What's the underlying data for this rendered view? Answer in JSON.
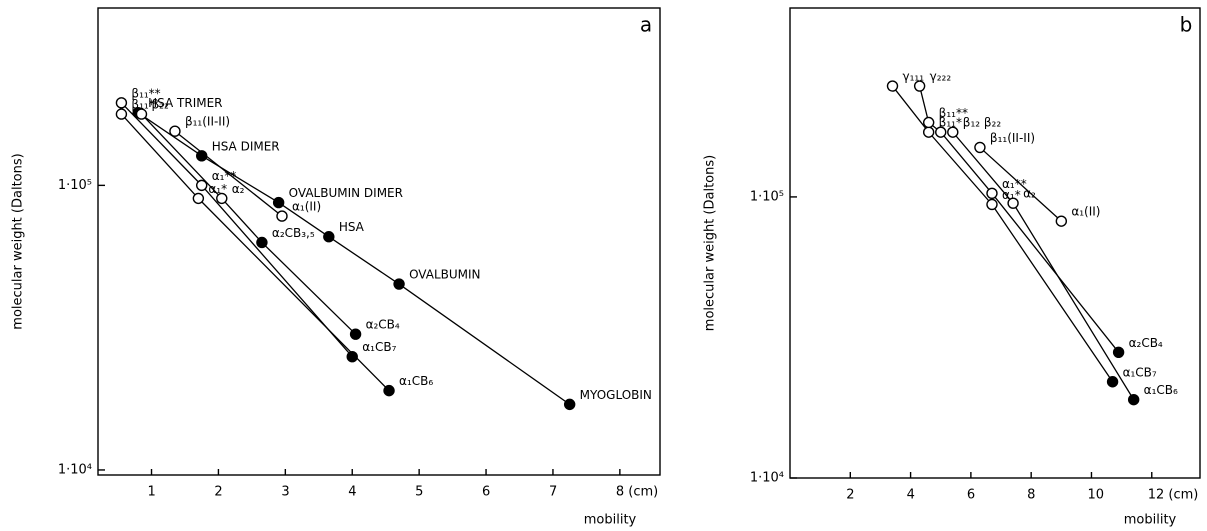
{
  "chart_data": [
    {
      "type": "line",
      "panel_label": "a",
      "xlabel": "mobility",
      "ylabel": "molecular weight (Daltons)",
      "yscale": "log",
      "color": "#000000",
      "xlim": [
        0.2,
        8.6
      ],
      "ylim": [
        9600,
        420000
      ],
      "xticks": [
        1,
        2,
        3,
        4,
        5,
        6,
        7,
        {
          "value": 8,
          "label": "8 (cm)"
        }
      ],
      "yticks": [
        {
          "value": 10000,
          "label": "1·10⁴"
        },
        {
          "value": 100000,
          "label": "1·10⁵"
        }
      ],
      "series": [
        {
          "x": [
            0.8,
            1.75,
            2.9,
            3.65,
            4.7,
            7.25
          ],
          "values": [
            180000,
            127000,
            87000,
            66000,
            45000,
            17000
          ],
          "markers": [
            "filled",
            "filled",
            "filled",
            "filled",
            "filled",
            "filled"
          ],
          "point_labels": [
            "HSA TRIMER",
            "HSA DIMER",
            "OVALBUMIN DIMER",
            "HSA",
            "OVALBUMIN",
            "MYOGLOBIN"
          ]
        },
        {
          "x": [
            0.85,
            2.05,
            2.65,
            4.05
          ],
          "values": [
            178000,
            90000,
            63000,
            30000
          ],
          "markers": [
            "open",
            "open",
            "filled",
            "filled"
          ],
          "point_labels": [
            "β₂₂",
            "α₂",
            "α₂CB₃,₅",
            "α₂CB₄"
          ]
        },
        {
          "x": [
            0.55,
            1.75,
            4.0
          ],
          "values": [
            195000,
            100000,
            25000
          ],
          "markers": [
            "open",
            "open",
            "filled"
          ],
          "point_labels": [
            "β₁₁**",
            "α₁**",
            "α₁CB₇"
          ]
        },
        {
          "x": [
            0.55,
            1.7,
            4.55
          ],
          "values": [
            178000,
            90000,
            19000
          ],
          "markers": [
            "open",
            "open",
            "filled"
          ],
          "point_labels": [
            "β₁₁*",
            "α₁*",
            "α₁CB₆"
          ]
        },
        {
          "x": [
            1.35,
            2.95
          ],
          "values": [
            155000,
            78000
          ],
          "markers": [
            "open",
            "open"
          ],
          "point_labels": [
            "β₁₁(II-II)",
            "α₁(II)"
          ]
        }
      ]
    },
    {
      "type": "line",
      "panel_label": "b",
      "xlabel": "mobility",
      "ylabel": "molecular weight (Daltons)",
      "yscale": "log",
      "color": "#000000",
      "xlim": [
        0,
        13.6
      ],
      "ylim": [
        10000,
        470000
      ],
      "xticks": [
        2,
        4,
        6,
        8,
        10,
        {
          "value": 12,
          "label": "12 (cm)"
        }
      ],
      "yticks": [
        {
          "value": 10000,
          "label": "1·10⁴"
        },
        {
          "value": 100000,
          "label": "1·10⁵"
        }
      ],
      "series": [
        {
          "x": [
            3.4,
            4.6,
            6.7,
            10.7
          ],
          "values": [
            248000,
            170000,
            94000,
            22000
          ],
          "markers": [
            "open",
            "open",
            "open",
            "filled"
          ],
          "point_labels": [
            "γ₁₁₁",
            "β₁₁*",
            "α₁*",
            "α₁CB₇"
          ]
        },
        {
          "x": [
            4.3,
            4.6,
            5.0,
            6.7,
            10.9
          ],
          "values": [
            248000,
            184000,
            170000,
            103000,
            28000
          ],
          "markers": [
            "open",
            "open",
            "open",
            "open",
            "filled"
          ],
          "point_labels": [
            "γ₂₂₂",
            "β₁₁**",
            null,
            "α₁**",
            "α₂CB₄"
          ]
        },
        {
          "x": [
            5.4,
            7.4,
            11.4
          ],
          "values": [
            170000,
            95000,
            19000
          ],
          "markers": [
            "open",
            "open",
            "filled"
          ],
          "point_labels": [
            "β₁₂ β₂₂",
            "α₂",
            "α₁CB₆"
          ]
        },
        {
          "x": [
            6.3,
            9.0
          ],
          "values": [
            150000,
            82000
          ],
          "markers": [
            "open",
            "open"
          ],
          "point_labels": [
            "β₁₁(II-II)",
            "α₁(II)"
          ]
        }
      ]
    }
  ]
}
